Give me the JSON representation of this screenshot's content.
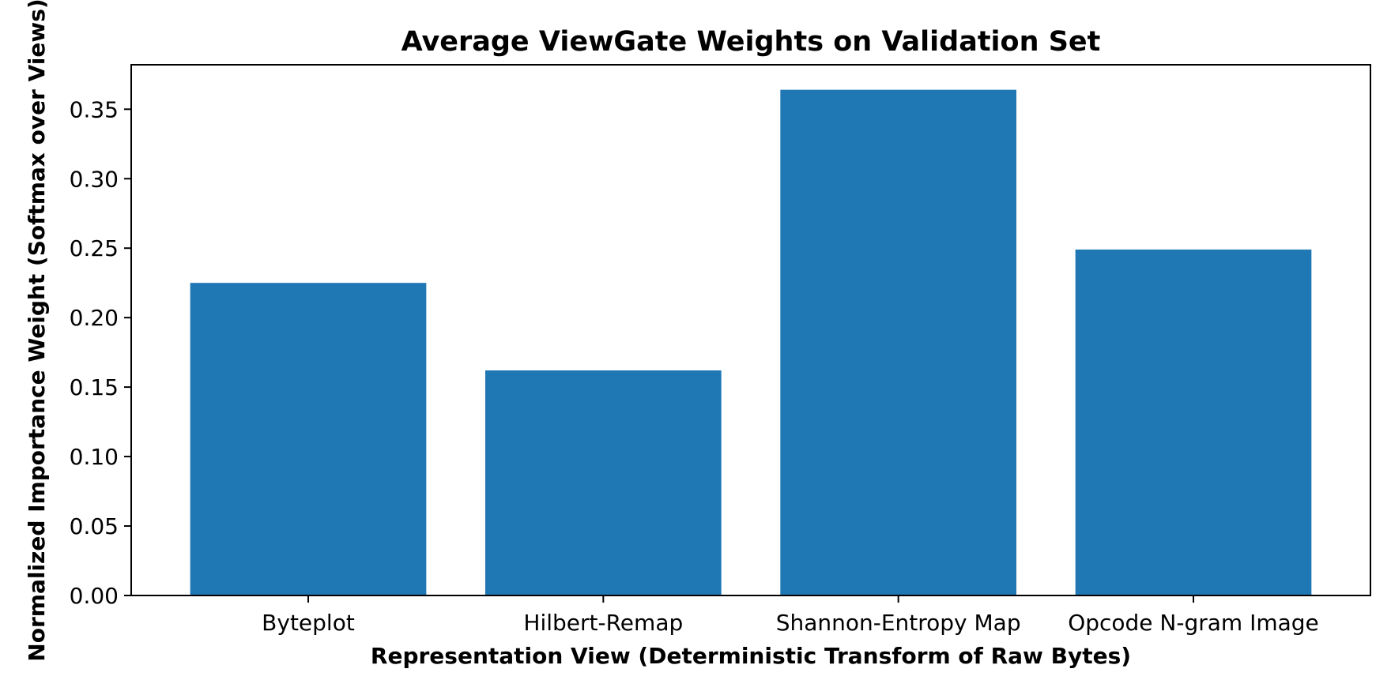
{
  "chart_data": {
    "type": "bar",
    "title": "Average ViewGate Weights on Validation Set",
    "xlabel": "Representation View (Deterministic Transform of Raw Bytes)",
    "ylabel": "Normalized Importance Weight (Softmax over Views)",
    "categories": [
      "Byteplot",
      "Hilbert-Remap",
      "Shannon-Entropy Map",
      "Opcode N-gram Image"
    ],
    "values": [
      0.225,
      0.162,
      0.364,
      0.249
    ],
    "ylim": [
      0,
      0.382
    ],
    "yticks": [
      0.0,
      0.05,
      0.1,
      0.15,
      0.2,
      0.25,
      0.3,
      0.35
    ],
    "ytick_labels": [
      "0.00",
      "0.05",
      "0.10",
      "0.15",
      "0.20",
      "0.25",
      "0.30",
      "0.35"
    ],
    "bar_color": "#1f77b4",
    "grid": false,
    "legend": "none"
  }
}
